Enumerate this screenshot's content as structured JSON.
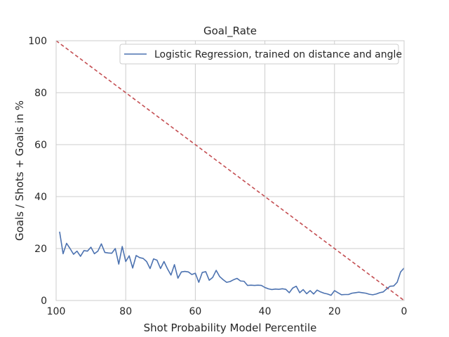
{
  "chart_data": {
    "type": "line",
    "title": "Goal_Rate",
    "xlabel": "Shot Probability Model Percentile",
    "ylabel": "Goals / Shots + Goals in %",
    "xlim": [
      100,
      0
    ],
    "ylim": [
      0,
      100
    ],
    "x_ticks": [
      100,
      80,
      60,
      40,
      20,
      0
    ],
    "y_ticks": [
      0,
      20,
      40,
      60,
      80,
      100
    ],
    "grid": true,
    "legend_position": "top-right",
    "colors": {
      "series": "#4c72b0",
      "reference": "#c44e52",
      "grid": "#cccccc",
      "axis": "#262626"
    },
    "series": [
      {
        "name": "Logistic Regression, trained on distance and angle",
        "x": [
          99,
          98,
          97,
          96,
          95,
          94,
          93,
          92,
          91,
          90,
          89,
          88,
          87,
          86,
          85,
          84,
          83,
          82,
          81,
          80,
          79,
          78,
          77,
          76,
          75,
          74,
          73,
          72,
          71,
          70,
          69,
          68,
          67,
          66,
          65,
          64,
          63,
          62,
          61,
          60,
          59,
          58,
          57,
          56,
          55,
          54,
          53,
          52,
          51,
          50,
          49,
          48,
          47,
          46,
          45,
          44,
          43,
          42,
          41,
          40,
          39,
          38,
          37,
          36,
          35,
          34,
          33,
          32,
          31,
          30,
          29,
          28,
          27,
          26,
          25,
          24,
          23,
          22,
          21,
          20,
          19,
          18,
          17,
          16,
          15,
          14,
          13,
          12,
          11,
          10,
          9,
          8,
          7,
          6,
          5,
          4,
          3,
          2,
          1,
          0
        ],
        "y": [
          26.5,
          18,
          22,
          20,
          17.8,
          19,
          17,
          19.2,
          19,
          20.5,
          18,
          19,
          21.8,
          18.5,
          18.3,
          18.2,
          20,
          14,
          20.8,
          15,
          17.2,
          12.5,
          17.3,
          16.5,
          16.2,
          15,
          12.3,
          16,
          15.5,
          12.3,
          15,
          12.2,
          9.8,
          13.8,
          8.6,
          11,
          11.2,
          11,
          10,
          10.5,
          7,
          10.8,
          11.1,
          7.8,
          8.9,
          11.6,
          9.2,
          8,
          7,
          7.3,
          8,
          8.5,
          7.5,
          7.4,
          5.8,
          5.9,
          5.8,
          5.9,
          5.8,
          5,
          4.5,
          4.2,
          4.4,
          4.3,
          4.5,
          4.3,
          3,
          4.8,
          5.5,
          3,
          4.2,
          2.6,
          3.8,
          2.5,
          4,
          3.3,
          2.8,
          2.5,
          2,
          3.8,
          3,
          2.2,
          2.3,
          2.3,
          2.8,
          3,
          3.2,
          3,
          2.8,
          2.4,
          2.2,
          2.5,
          3,
          3.3,
          4.5,
          5.5,
          5.6,
          7,
          11,
          12.5
        ]
      },
      {
        "name": "",
        "x": [
          100,
          0
        ],
        "y": [
          100,
          0
        ]
      }
    ]
  }
}
